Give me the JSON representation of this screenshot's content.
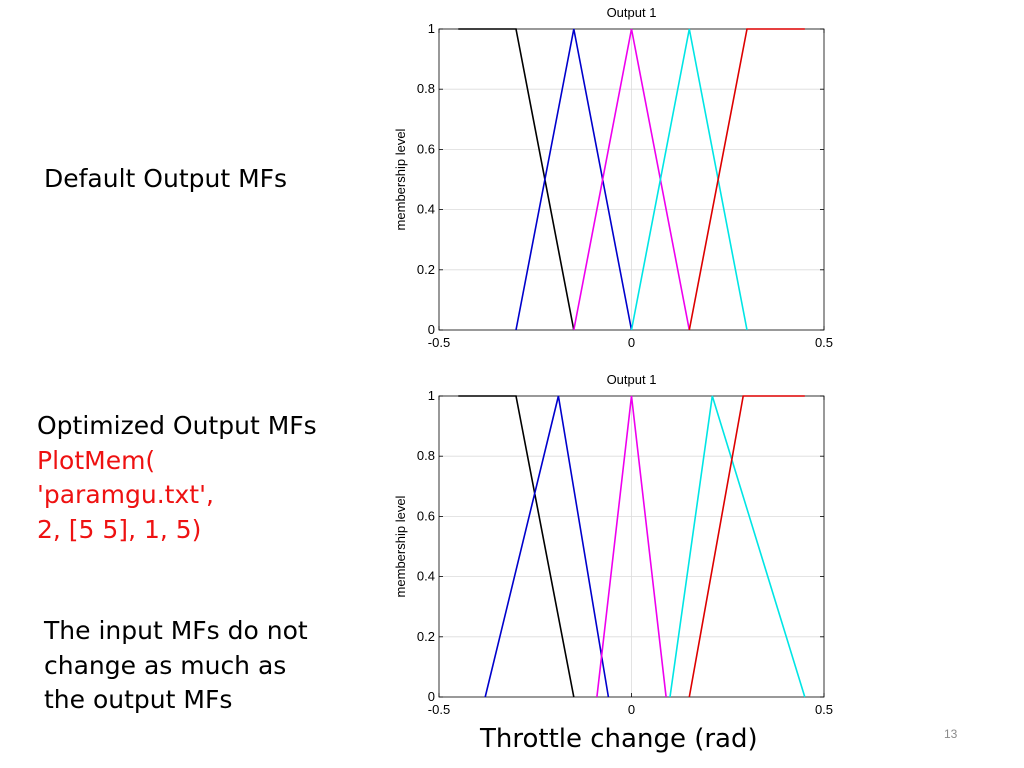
{
  "slide": {
    "default_label": "Default Output MFs",
    "optimized_label": "Optimized Output MFs",
    "command_lines": [
      "PlotMem(",
      "'paramgu.txt',",
      "2, [5 5], 1, 5)"
    ],
    "note_lines": [
      "The input MFs do not",
      "change as much as",
      "the output MFs"
    ],
    "xlabel_footer": "Throttle change (rad)",
    "page_number": "13"
  },
  "chart_data": [
    {
      "type": "line",
      "title": "Output 1",
      "xlabel": "",
      "ylabel": "membership level",
      "xlim": [
        -0.5,
        0.5
      ],
      "ylim": [
        0,
        1
      ],
      "xticks": [
        "-0.5",
        "0",
        "0.5"
      ],
      "yticks": [
        "0",
        "0.2",
        "0.4",
        "0.6",
        "0.8",
        "1"
      ],
      "grid": true,
      "series": [
        {
          "color": "#000000",
          "x": [
            -0.45,
            -0.3,
            -0.15
          ],
          "y": [
            1,
            1,
            0
          ]
        },
        {
          "color": "#0000cc",
          "x": [
            -0.3,
            -0.15,
            0
          ],
          "y": [
            0,
            1,
            0
          ]
        },
        {
          "color": "#ee00ee",
          "x": [
            -0.15,
            0,
            0.15
          ],
          "y": [
            0,
            1,
            0
          ]
        },
        {
          "color": "#00e5e5",
          "x": [
            0,
            0.15,
            0.3
          ],
          "y": [
            0,
            1,
            0
          ]
        },
        {
          "color": "#dd0000",
          "x": [
            0.15,
            0.3,
            0.45
          ],
          "y": [
            0,
            1,
            1
          ]
        }
      ]
    },
    {
      "type": "line",
      "title": "Output 1",
      "xlabel": "",
      "ylabel": "membership level",
      "xlim": [
        -0.5,
        0.5
      ],
      "ylim": [
        0,
        1
      ],
      "xticks": [
        "-0.5",
        "0",
        "0.5"
      ],
      "yticks": [
        "0",
        "0.2",
        "0.4",
        "0.6",
        "0.8",
        "1"
      ],
      "grid": true,
      "series": [
        {
          "color": "#000000",
          "x": [
            -0.45,
            -0.3,
            -0.15
          ],
          "y": [
            1,
            1,
            0
          ]
        },
        {
          "color": "#0000cc",
          "x": [
            -0.38,
            -0.19,
            -0.06
          ],
          "y": [
            0,
            1,
            0
          ]
        },
        {
          "color": "#ee00ee",
          "x": [
            -0.09,
            0,
            0.09
          ],
          "y": [
            0,
            1,
            0
          ]
        },
        {
          "color": "#00e5e5",
          "x": [
            0.1,
            0.21,
            0.45
          ],
          "y": [
            0,
            1,
            0
          ]
        },
        {
          "color": "#dd0000",
          "x": [
            0.15,
            0.29,
            0.45
          ],
          "y": [
            0,
            1,
            1
          ]
        }
      ]
    }
  ]
}
